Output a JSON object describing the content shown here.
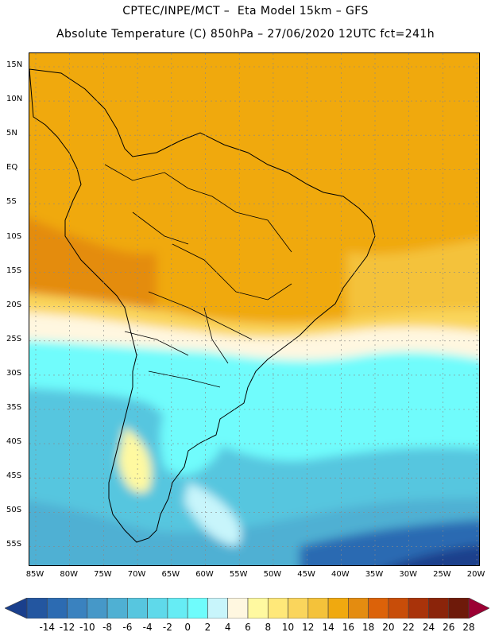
{
  "header": {
    "line1": "CPTEC/INPE/MCT –  Eta Model 15km – GFS",
    "line2": "Absolute Temperature (C) 850hPa – 27/06/2020 12UTC fct=241h"
  },
  "map": {
    "lat_labels": [
      "15N",
      "10N",
      "5N",
      "EQ",
      "5S",
      "10S",
      "15S",
      "20S",
      "25S",
      "30S",
      "35S",
      "40S",
      "45S",
      "50S",
      "55S"
    ],
    "lon_labels": [
      "85W",
      "80W",
      "75W",
      "70W",
      "65W",
      "60W",
      "55W",
      "50W",
      "45W",
      "40W",
      "35W",
      "30W",
      "25W",
      "20W"
    ]
  },
  "colorbar": {
    "labels": [
      "-14",
      "-12",
      "-10",
      "-8",
      "-6",
      "-4",
      "-2",
      "0",
      "2",
      "4",
      "6",
      "8",
      "10",
      "12",
      "14",
      "16",
      "18",
      "20",
      "22",
      "24",
      "26",
      "28"
    ],
    "colors": [
      "#1a3f8c",
      "#2356a0",
      "#2c6bb2",
      "#3a82bf",
      "#4698c8",
      "#4fb0d3",
      "#57c6df",
      "#5fd9ea",
      "#66ecf4",
      "#6ffcfc",
      "#c8f5fb",
      "#fff7e0",
      "#fff9a0",
      "#ffe879",
      "#fad55c",
      "#f4c23a",
      "#f0a90f",
      "#e48c10",
      "#dc6209",
      "#c84d09",
      "#a9330a",
      "#8b240a",
      "#6e1a0a",
      "#9b0033"
    ]
  }
}
